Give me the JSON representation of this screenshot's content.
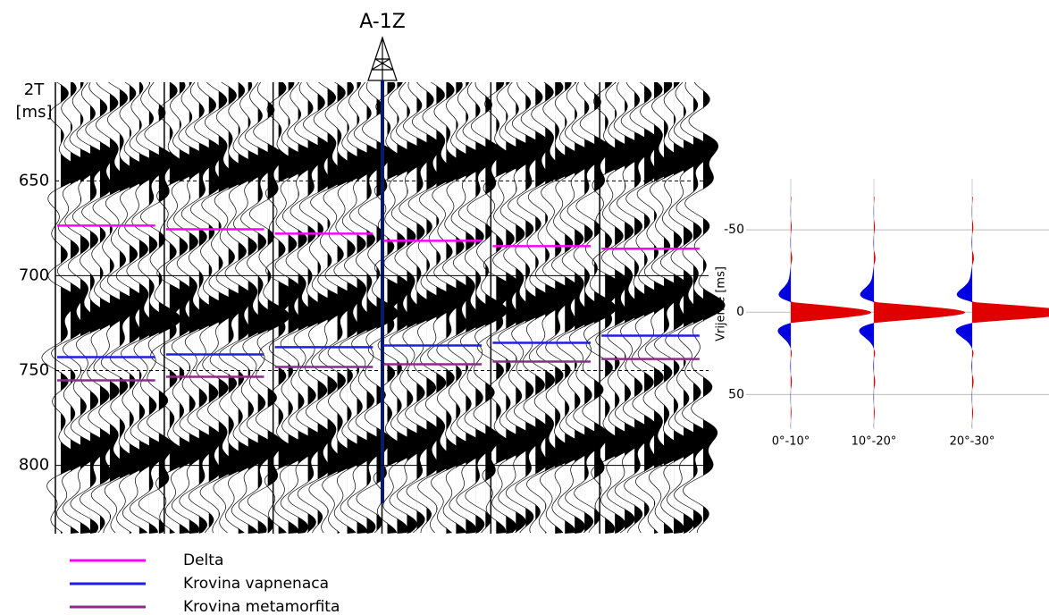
{
  "chart_data": [
    {
      "type": "seismic",
      "well": "A-1Z",
      "ylabel": [
        "2T",
        "[ms]"
      ],
      "ylim": [
        598,
        836
      ],
      "yticks": [
        650,
        700,
        750,
        800
      ],
      "grid": true,
      "series": [
        {
          "name": "Delta",
          "color": "#ff00ff",
          "values": [
            673.6,
            675.5,
            677.8,
            681.6,
            684.4,
            685.8
          ]
        },
        {
          "name": "Krovina vapnenaca",
          "color": "#1f1fe0",
          "values": [
            742.9,
            741.5,
            737.7,
            736.8,
            735.4,
            731.6
          ]
        },
        {
          "name": "Krovina metamorfita",
          "color": "#8b2c8b",
          "values": [
            755.2,
            753.3,
            748.1,
            746.7,
            745.3,
            743.9
          ]
        }
      ]
    },
    {
      "type": "wavelet",
      "ylabel": "Vrijeme [ms]",
      "categories": [
        "0°-10°",
        "10°-20°",
        "20°-30°"
      ],
      "ylim": [
        -81,
        71
      ],
      "yticks": [
        -50,
        0,
        50
      ],
      "grid": true
    }
  ]
}
